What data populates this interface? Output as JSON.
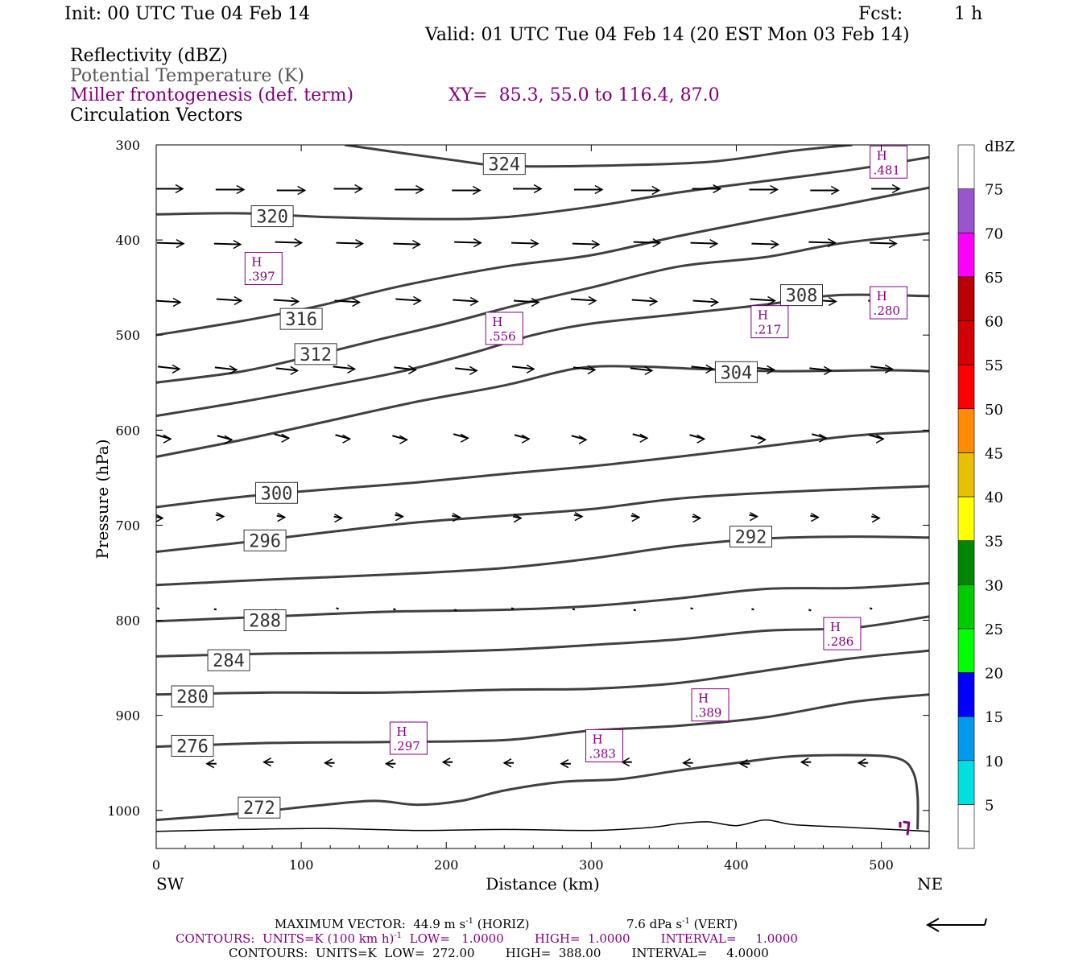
{
  "header": {
    "init": "Init: 00 UTC Tue 04 Feb 14",
    "fcst_label": "Fcst:",
    "fcst_value": "1 h",
    "valid": "Valid: 01 UTC Tue 04 Feb 14 (20 EST Mon 03 Feb 14)"
  },
  "fields": {
    "reflectivity": "Reflectivity (dBZ)",
    "theta": "Potential Temperature (K)",
    "miller": "Miller frontogenesis (def. term)",
    "xy": "XY=  85.3, 55.0 to 116.4, 87.0",
    "vectors": "Circulation Vectors"
  },
  "colors": {
    "theta_contour": "#404040",
    "miller_label": "#800080",
    "vector": "#000000"
  },
  "chart_data": {
    "type": "cross-section",
    "xlabel": "Distance (km)",
    "ylabel": "Pressure (hPa)",
    "xlim": [
      0,
      533
    ],
    "ylim": [
      1040,
      300
    ],
    "x_ticks": [
      0,
      100,
      200,
      300,
      400,
      500
    ],
    "y_ticks": [
      300,
      400,
      500,
      600,
      700,
      800,
      900,
      1000
    ],
    "x_left_label": "SW",
    "x_right_label": "NE",
    "theta_contours": [
      {
        "label": "324",
        "label_at": [
          240,
          320
        ],
        "points": [
          [
            130,
            300
          ],
          [
            200,
            315
          ],
          [
            240,
            322
          ],
          [
            300,
            322
          ],
          [
            380,
            318
          ],
          [
            440,
            306
          ],
          [
            480,
            300
          ]
        ]
      },
      {
        "label": "320",
        "label_at": [
          80,
          375
        ],
        "points": [
          [
            0,
            373
          ],
          [
            60,
            372
          ],
          [
            120,
            376
          ],
          [
            190,
            378
          ],
          [
            240,
            376
          ],
          [
            300,
            365
          ],
          [
            360,
            350
          ],
          [
            420,
            338
          ],
          [
            480,
            326
          ],
          [
            533,
            313
          ]
        ]
      },
      {
        "label": "316",
        "label_at": [
          100,
          483
        ],
        "points": [
          [
            0,
            500
          ],
          [
            60,
            485
          ],
          [
            110,
            470
          ],
          [
            170,
            448
          ],
          [
            240,
            428
          ],
          [
            300,
            416
          ],
          [
            360,
            396
          ],
          [
            420,
            378
          ],
          [
            470,
            364
          ],
          [
            533,
            345
          ]
        ]
      },
      {
        "label": "312",
        "label_at": [
          110,
          520
        ],
        "points": [
          [
            0,
            550
          ],
          [
            60,
            538
          ],
          [
            110,
            521
          ],
          [
            150,
            506
          ],
          [
            200,
            488
          ],
          [
            250,
            468
          ],
          [
            300,
            450
          ],
          [
            360,
            428
          ],
          [
            420,
            418
          ],
          [
            470,
            404
          ],
          [
            533,
            393
          ]
        ]
      },
      {
        "label": "308",
        "label_at": [
          445,
          458
        ],
        "points": [
          [
            0,
            585
          ],
          [
            60,
            570
          ],
          [
            120,
            553
          ],
          [
            170,
            538
          ],
          [
            220,
            518
          ],
          [
            260,
            500
          ],
          [
            300,
            488
          ],
          [
            360,
            478
          ],
          [
            420,
            468
          ],
          [
            470,
            458
          ],
          [
            533,
            459
          ]
        ]
      },
      {
        "label": "304",
        "label_at": [
          400,
          539
        ],
        "points": [
          [
            0,
            628
          ],
          [
            60,
            610
          ],
          [
            120,
            590
          ],
          [
            180,
            570
          ],
          [
            240,
            553
          ],
          [
            290,
            535
          ],
          [
            330,
            533
          ],
          [
            380,
            536
          ],
          [
            430,
            538
          ],
          [
            500,
            537
          ],
          [
            533,
            538
          ]
        ]
      },
      {
        "label": "300",
        "label_at": [
          83,
          666
        ],
        "points": [
          [
            0,
            681
          ],
          [
            60,
            670
          ],
          [
            120,
            662
          ],
          [
            180,
            655
          ],
          [
            240,
            646
          ],
          [
            300,
            638
          ],
          [
            360,
            628
          ],
          [
            420,
            617
          ],
          [
            480,
            606
          ],
          [
            533,
            601
          ]
        ]
      },
      {
        "label": "296",
        "label_at": [
          75,
          716
        ],
        "points": [
          [
            0,
            728
          ],
          [
            60,
            718
          ],
          [
            120,
            707
          ],
          [
            180,
            697
          ],
          [
            240,
            690
          ],
          [
            300,
            683
          ],
          [
            360,
            672
          ],
          [
            420,
            666
          ],
          [
            480,
            662
          ],
          [
            533,
            659
          ]
        ]
      },
      {
        "label": "292",
        "label_at": [
          410,
          712
        ],
        "points": [
          [
            0,
            763
          ],
          [
            80,
            757
          ],
          [
            160,
            752
          ],
          [
            240,
            745
          ],
          [
            300,
            735
          ],
          [
            360,
            722
          ],
          [
            420,
            714
          ],
          [
            480,
            712
          ],
          [
            533,
            713
          ]
        ]
      },
      {
        "label": "288",
        "label_at": [
          75,
          800
        ],
        "points": [
          [
            0,
            801
          ],
          [
            80,
            796
          ],
          [
            160,
            791
          ],
          [
            240,
            789
          ],
          [
            300,
            785
          ],
          [
            360,
            777
          ],
          [
            420,
            767
          ],
          [
            480,
            766
          ],
          [
            533,
            761
          ]
        ]
      },
      {
        "label": "284",
        "label_at": [
          50,
          842
        ],
        "points": [
          [
            0,
            838
          ],
          [
            80,
            835
          ],
          [
            160,
            834
          ],
          [
            240,
            831
          ],
          [
            300,
            826
          ],
          [
            360,
            820
          ],
          [
            420,
            811
          ],
          [
            480,
            808
          ],
          [
            533,
            796
          ]
        ]
      },
      {
        "label": "280",
        "label_at": [
          25,
          880
        ],
        "points": [
          [
            0,
            878
          ],
          [
            80,
            876
          ],
          [
            160,
            876
          ],
          [
            240,
            873
          ],
          [
            300,
            872
          ],
          [
            360,
            866
          ],
          [
            420,
            853
          ],
          [
            480,
            840
          ],
          [
            533,
            832
          ]
        ]
      },
      {
        "label": "276",
        "label_at": [
          25,
          932
        ],
        "points": [
          [
            0,
            933
          ],
          [
            80,
            929
          ],
          [
            160,
            928
          ],
          [
            240,
            926
          ],
          [
            300,
            916
          ],
          [
            360,
            911
          ],
          [
            420,
            902
          ],
          [
            480,
            886
          ],
          [
            533,
            878
          ]
        ]
      },
      {
        "label": "272",
        "label_at": [
          71,
          997
        ],
        "points": [
          [
            0,
            1010
          ],
          [
            60,
            1003
          ],
          [
            110,
            995
          ],
          [
            150,
            990
          ],
          [
            180,
            994
          ],
          [
            210,
            990
          ],
          [
            240,
            979
          ],
          [
            280,
            970
          ],
          [
            320,
            967
          ],
          [
            360,
            958
          ],
          [
            400,
            950
          ],
          [
            440,
            943
          ],
          [
            490,
            942
          ],
          [
            513,
            946
          ],
          [
            522,
            960
          ],
          [
            525,
            985
          ],
          [
            525,
            1020
          ]
        ]
      }
    ],
    "ground_line": [
      [
        0,
        1022
      ],
      [
        60,
        1020
      ],
      [
        120,
        1019
      ],
      [
        180,
        1021
      ],
      [
        240,
        1020
      ],
      [
        300,
        1021
      ],
      [
        340,
        1018
      ],
      [
        360,
        1014
      ],
      [
        380,
        1012
      ],
      [
        400,
        1016
      ],
      [
        420,
        1010
      ],
      [
        440,
        1015
      ],
      [
        480,
        1018
      ],
      [
        533,
        1022
      ]
    ],
    "miller_maxima": [
      {
        "sym": "H",
        "val": ".481",
        "at": [
          505,
          318
        ]
      },
      {
        "sym": "H",
        "val": ".397",
        "at": [
          74,
          430
        ]
      },
      {
        "sym": "H",
        "val": ".556",
        "at": [
          240,
          493
        ]
      },
      {
        "sym": "H",
        "val": ".280",
        "at": [
          505,
          466
        ]
      },
      {
        "sym": "H",
        "val": ".217",
        "at": [
          423,
          486
        ]
      },
      {
        "sym": "H",
        "val": ".286",
        "at": [
          473,
          814
        ]
      },
      {
        "sym": "H",
        "val": ".389",
        "at": [
          382,
          889
        ]
      },
      {
        "sym": "H",
        "val": ".297",
        "at": [
          174,
          924
        ]
      },
      {
        "sym": "H",
        "val": ".383",
        "at": [
          309,
          932
        ]
      }
    ],
    "vector_rows": [
      {
        "p": 347,
        "dx": 35,
        "dy": 0
      },
      {
        "p": 403,
        "dx": 33,
        "dy": 1
      },
      {
        "p": 463,
        "dx": 31,
        "dy": 2
      },
      {
        "p": 534,
        "dx": 27,
        "dy": 3
      },
      {
        "p": 605,
        "dx": 18,
        "dy": 5
      },
      {
        "p": 690,
        "dx": 10,
        "dy": 2
      },
      {
        "p": 788,
        "dx": 3,
        "dy": 1
      },
      {
        "p": 950,
        "dx": -12,
        "dy": 0
      }
    ],
    "colorbar": {
      "unit": "dBZ",
      "levels": [
        5,
        10,
        15,
        20,
        25,
        30,
        35,
        40,
        45,
        50,
        55,
        60,
        65,
        70,
        75
      ],
      "colors": [
        "#ffffff",
        "#00e0e0",
        "#0099ee",
        "#0000ff",
        "#00ff00",
        "#00cc00",
        "#008800",
        "#ffff00",
        "#e8c000",
        "#ff8c00",
        "#ff0000",
        "#d40000",
        "#bb0000",
        "#ff00ff",
        "#9955cc",
        "#ffffff"
      ]
    }
  },
  "footer": {
    "max_vector": "MAXIMUM VECTOR:  44.9 m s",
    "max_vector_sup": "-1",
    "max_vector_horiz": " (HORIZ)",
    "vert_value": "7.6 dPa s",
    "vert_sup": "-1",
    "vert_suffix": " (VERT)",
    "contours1_a": "CONTOURS:  UNITS=K (100 km h)",
    "contours1_sup": "-1",
    "contours1_b": "  LOW=   1.0000        HIGH=  1.0000        INTERVAL=     1.0000",
    "contours2": "CONTOURS:  UNITS=K  LOW=  272.00        HIGH=  388.00        INTERVAL=     4.0000"
  }
}
